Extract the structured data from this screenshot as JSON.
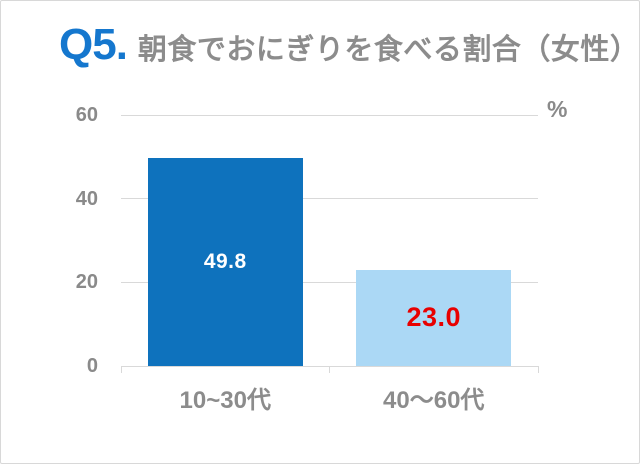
{
  "slide": {
    "background": "#ffffff",
    "border_color": "#d8d8d8"
  },
  "title": {
    "prefix": "Q5.",
    "text": "朝食でおにぎりを食べる割合（女性）"
  },
  "chart_data": {
    "type": "bar",
    "title": "Q5. 朝食でおにぎりを食べる割合（女性）",
    "unit_label": "%",
    "categories": [
      "10~30代",
      "40～60代"
    ],
    "values": [
      49.8,
      23.0
    ],
    "value_labels": [
      "49.8",
      "23.0"
    ],
    "bar_colors": [
      "#0e72bd",
      "#abd8f5"
    ],
    "value_label_colors": [
      "#ffffff",
      "#e80000"
    ],
    "ylim": [
      0,
      60
    ],
    "yticks": [
      0,
      20,
      40,
      60
    ],
    "grid": true,
    "legend": false,
    "colors": {
      "axis_line": "#d9d9d9",
      "tick_label": "#8a8a8a",
      "category_label": "#8c8c8c",
      "title_prefix": "#1577ce",
      "title_text": "#8c8c8c"
    }
  }
}
